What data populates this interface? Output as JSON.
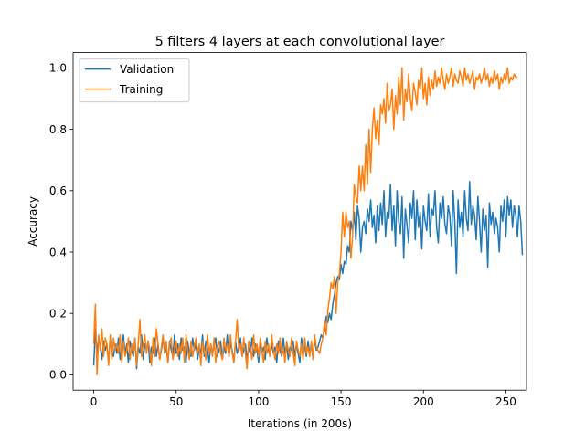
{
  "chart_data": {
    "type": "line",
    "title": "5 filters 4 layers at each convolutional layer",
    "xlabel": "Iterations (in 200s)",
    "ylabel": "Accuracy",
    "xlim": [
      -12.5,
      262.5
    ],
    "ylim": [
      -0.05,
      1.05
    ],
    "xticks": [
      0,
      50,
      100,
      150,
      200,
      250
    ],
    "yticks": [
      0.0,
      0.2,
      0.4,
      0.6,
      0.8,
      1.0
    ],
    "xtick_labels": [
      "0",
      "50",
      "100",
      "150",
      "200",
      "250"
    ],
    "ytick_labels": [
      "0.0",
      "0.2",
      "0.4",
      "0.6",
      "0.8",
      "1.0"
    ],
    "grid": false,
    "legend": "top-left",
    "series": [
      {
        "name": "Validation",
        "color": "#1f77b4",
        "values": [
          0.03,
          0.15,
          0.07,
          0.12,
          0.09,
          0.05,
          0.11,
          0.08,
          0.1,
          0.04,
          0.12,
          0.08,
          0.06,
          0.1,
          0.07,
          0.12,
          0.05,
          0.09,
          0.13,
          0.07,
          0.1,
          0.04,
          0.11,
          0.08,
          0.06,
          0.12,
          0.02,
          0.09,
          0.07,
          0.13,
          0.05,
          0.1,
          0.08,
          0.11,
          0.04,
          0.09,
          0.07,
          0.12,
          0.06,
          0.1,
          0.05,
          0.08,
          0.12,
          0.07,
          0.09,
          0.04,
          0.11,
          0.08,
          0.06,
          0.13,
          0.07,
          0.1,
          0.05,
          0.12,
          0.08,
          0.09,
          0.04,
          0.11,
          0.07,
          0.06,
          0.12,
          0.08,
          0.1,
          0.05,
          0.09,
          0.07,
          0.13,
          0.06,
          0.11,
          0.08,
          0.04,
          0.1,
          0.07,
          0.09,
          0.12,
          0.06,
          0.08,
          0.11,
          0.05,
          0.09,
          0.07,
          0.13,
          0.06,
          0.1,
          0.08,
          0.04,
          0.11,
          0.07,
          0.09,
          0.12,
          0.06,
          0.08,
          0.1,
          0.05,
          0.09,
          0.07,
          0.12,
          0.06,
          0.1,
          0.08,
          0.04,
          0.11,
          0.07,
          0.09,
          0.05,
          0.12,
          0.08,
          0.06,
          0.1,
          0.07,
          0.09,
          0.04,
          0.11,
          0.08,
          0.06,
          0.12,
          0.07,
          0.1,
          0.05,
          0.09,
          0.08,
          0.11,
          0.06,
          0.1,
          0.07,
          0.04,
          0.12,
          0.08,
          0.09,
          0.06,
          0.11,
          0.07,
          0.1,
          0.05,
          0.12,
          0.08,
          0.09,
          0.11,
          0.13,
          0.12,
          0.15,
          0.19,
          0.17,
          0.2,
          0.18,
          0.23,
          0.26,
          0.3,
          0.32,
          0.31,
          0.36,
          0.33,
          0.37,
          0.36,
          0.42,
          0.4,
          0.5,
          0.47,
          0.53,
          0.44,
          0.55,
          0.51,
          0.4,
          0.48,
          0.5,
          0.46,
          0.54,
          0.5,
          0.57,
          0.48,
          0.52,
          0.43,
          0.55,
          0.47,
          0.56,
          0.49,
          0.6,
          0.45,
          0.53,
          0.51,
          0.62,
          0.47,
          0.55,
          0.42,
          0.6,
          0.5,
          0.46,
          0.58,
          0.38,
          0.54,
          0.49,
          0.43,
          0.56,
          0.51,
          0.6,
          0.44,
          0.57,
          0.48,
          0.53,
          0.41,
          0.55,
          0.5,
          0.47,
          0.59,
          0.45,
          0.54,
          0.52,
          0.6,
          0.48,
          0.43,
          0.56,
          0.51,
          0.58,
          0.49,
          0.46,
          0.55,
          0.52,
          0.42,
          0.6,
          0.5,
          0.33,
          0.57,
          0.48,
          0.53,
          0.45,
          0.6,
          0.51,
          0.47,
          0.63,
          0.49,
          0.55,
          0.52,
          0.44,
          0.58,
          0.5,
          0.4,
          0.54,
          0.47,
          0.52,
          0.35,
          0.56,
          0.49,
          0.53,
          0.46,
          0.51,
          0.48,
          0.4,
          0.55,
          0.5,
          0.57,
          0.45,
          0.58,
          0.52,
          0.57,
          0.48,
          0.55,
          0.52,
          0.45,
          0.55,
          0.5,
          0.39
        ]
      },
      {
        "name": "Training",
        "color": "#ff7f0e",
        "values": [
          0.1,
          0.23,
          0.0,
          0.13,
          0.08,
          0.15,
          0.06,
          0.12,
          0.1,
          0.03,
          0.13,
          0.05,
          0.12,
          0.08,
          0.1,
          0.07,
          0.13,
          0.04,
          0.11,
          0.06,
          0.08,
          0.12,
          0.05,
          0.1,
          0.07,
          0.12,
          0.03,
          0.1,
          0.18,
          0.06,
          0.1,
          0.13,
          0.07,
          0.11,
          0.08,
          0.03,
          0.12,
          0.06,
          0.15,
          0.1,
          0.05,
          0.09,
          0.13,
          0.07,
          0.11,
          0.04,
          0.1,
          0.12,
          0.05,
          0.08,
          0.11,
          0.06,
          0.1,
          0.07,
          0.12,
          0.04,
          0.13,
          0.08,
          0.05,
          0.11,
          0.06,
          0.09,
          0.12,
          0.07,
          0.1,
          0.03,
          0.11,
          0.08,
          0.05,
          0.13,
          0.07,
          0.1,
          0.06,
          0.12,
          0.04,
          0.09,
          0.11,
          0.07,
          0.05,
          0.12,
          0.08,
          0.1,
          0.06,
          0.13,
          0.07,
          0.04,
          0.11,
          0.18,
          0.08,
          0.1,
          0.06,
          0.12,
          0.07,
          0.02,
          0.11,
          0.09,
          0.05,
          0.13,
          0.07,
          0.1,
          0.06,
          0.12,
          0.08,
          0.04,
          0.11,
          0.07,
          0.1,
          0.06,
          0.13,
          0.08,
          0.05,
          0.1,
          0.07,
          0.12,
          0.06,
          0.09,
          0.04,
          0.11,
          0.08,
          0.06,
          0.12,
          0.07,
          0.03,
          0.11,
          0.08,
          0.06,
          0.1,
          0.05,
          0.12,
          0.07,
          0.09,
          0.06,
          0.11,
          0.05,
          0.13,
          0.09,
          0.08,
          0.07,
          0.1,
          0.12,
          0.17,
          0.13,
          0.21,
          0.25,
          0.3,
          0.28,
          0.32,
          0.2,
          0.3,
          0.33,
          0.4,
          0.53,
          0.45,
          0.53,
          0.48,
          0.5,
          0.38,
          0.45,
          0.62,
          0.58,
          0.56,
          0.68,
          0.6,
          0.68,
          0.6,
          0.75,
          0.62,
          0.8,
          0.66,
          0.8,
          0.87,
          0.77,
          0.83,
          0.75,
          0.88,
          0.85,
          0.9,
          0.82,
          0.95,
          0.86,
          0.88,
          0.93,
          0.8,
          0.91,
          0.85,
          0.97,
          0.88,
          1.0,
          0.83,
          0.93,
          0.89,
          0.98,
          0.9,
          0.86,
          0.95,
          0.92,
          0.88,
          0.96,
          0.93,
          1.0,
          0.9,
          0.95,
          0.88,
          0.97,
          0.91,
          0.96,
          0.93,
          0.99,
          0.94,
          0.97,
          0.95,
          1.0,
          0.96,
          0.93,
          0.98,
          0.95,
          0.97,
          1.0,
          0.94,
          0.98,
          0.96,
          0.95,
          0.99,
          0.97,
          0.94,
          1.0,
          0.96,
          0.98,
          0.95,
          0.97,
          0.99,
          0.93,
          0.97,
          0.96,
          0.98,
          0.95,
          0.97,
          1.0,
          0.96,
          0.98,
          0.94,
          0.97,
          0.95,
          0.99,
          0.96,
          0.98,
          0.93,
          0.97,
          0.95,
          0.98,
          0.96,
          1.0,
          0.95,
          0.97,
          0.96,
          0.98,
          0.97,
          0.97
        ]
      }
    ]
  }
}
